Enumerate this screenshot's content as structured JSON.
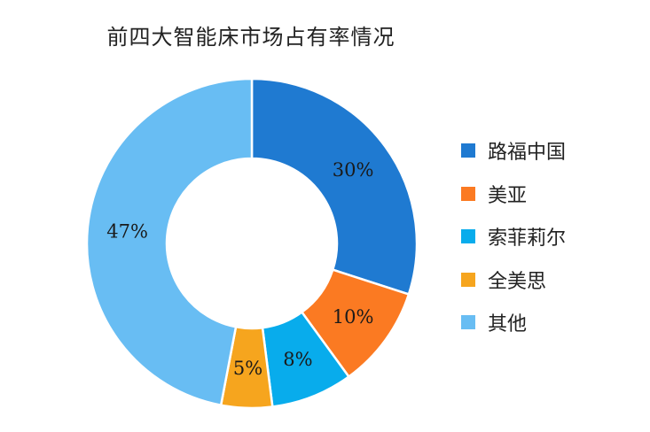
{
  "chart_data": {
    "type": "pie",
    "subtype": "donut",
    "title": "前四大智能床市场占有率情况",
    "categories": [
      "路福中国",
      "美亚",
      "索菲莉尔",
      "全美思",
      "其他"
    ],
    "values": [
      30,
      10,
      8,
      5,
      47
    ],
    "labels": [
      "30%",
      "10%",
      "8%",
      "5%",
      "47%"
    ],
    "colors": [
      "#1f7ad1",
      "#fb7a22",
      "#08acec",
      "#f6a51e",
      "#68bdf3"
    ],
    "legend_position": "right"
  }
}
